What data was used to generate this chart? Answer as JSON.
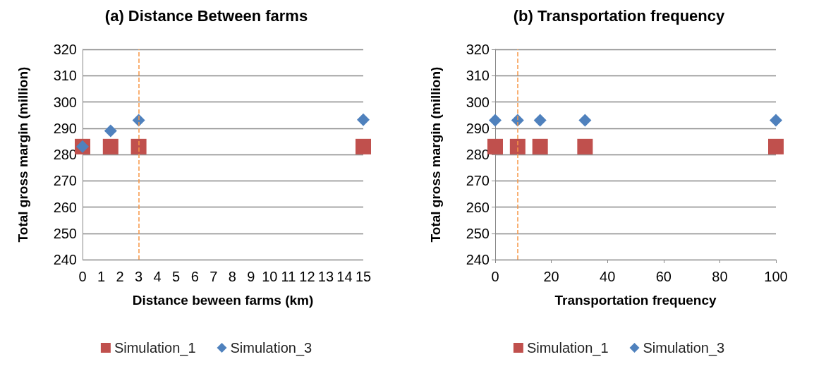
{
  "chart_data": [
    {
      "type": "scatter",
      "title": "(a) Distance Between farms",
      "xlabel": "Distance beween farms (km)",
      "ylabel": "Total gross margin (million)",
      "xlim": [
        0,
        15
      ],
      "xticks": [
        0,
        1,
        2,
        3,
        4,
        5,
        6,
        7,
        8,
        9,
        10,
        11,
        12,
        13,
        14,
        15
      ],
      "ylim": [
        240,
        320
      ],
      "yticks": [
        240,
        250,
        260,
        270,
        280,
        290,
        300,
        310,
        320
      ],
      "grid": "y",
      "legend": "bottom",
      "series": [
        {
          "name": "Simulation_1",
          "color": "#c0504d",
          "marker": "square",
          "x": [
            0,
            1.5,
            3,
            15
          ],
          "values": [
            283,
            283,
            283,
            283
          ]
        },
        {
          "name": "Simulation_3",
          "color": "#4f81bd",
          "marker": "diamond",
          "x": [
            0,
            1.5,
            3,
            15
          ],
          "values": [
            283,
            289,
            293,
            293.2
          ]
        }
      ],
      "ref_lines": [
        {
          "axis": "x",
          "value": 3,
          "color": "#f79646",
          "line_style": "dashed"
        }
      ]
    },
    {
      "type": "scatter",
      "title": "(b) Transportation frequency",
      "xlabel": "Transportation frequency",
      "ylabel": "Total gross margin (million)",
      "xlim": [
        0,
        100
      ],
      "xticks": [
        0,
        20,
        40,
        60,
        80,
        100
      ],
      "ylim": [
        240,
        320
      ],
      "yticks": [
        240,
        250,
        260,
        270,
        280,
        290,
        300,
        310,
        320
      ],
      "grid": "y",
      "legend": "bottom",
      "series": [
        {
          "name": "Simulation_1",
          "color": "#c0504d",
          "marker": "square",
          "x": [
            0,
            8,
            16,
            32,
            100
          ],
          "values": [
            283,
            283,
            283,
            283,
            283
          ]
        },
        {
          "name": "Simulation_3",
          "color": "#4f81bd",
          "marker": "diamond",
          "x": [
            0,
            8,
            16,
            32,
            100
          ],
          "values": [
            293,
            293,
            293,
            293,
            293
          ]
        }
      ],
      "ref_lines": [
        {
          "axis": "x",
          "value": 8,
          "color": "#f79646",
          "line_style": "dashed"
        }
      ]
    }
  ]
}
